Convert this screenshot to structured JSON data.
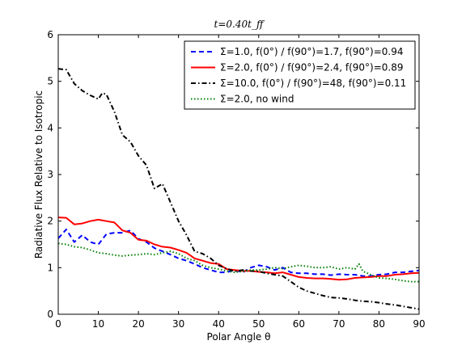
{
  "chart_data": {
    "type": "line",
    "title": "t=0.40t_ff",
    "xlabel": "Polar Angle θ",
    "ylabel": "Radiative Flux Relative to Isotropic",
    "xlim": [
      0,
      90
    ],
    "ylim": [
      0,
      6
    ],
    "xticks": [
      "0",
      "10",
      "20",
      "30",
      "40",
      "50",
      "60",
      "70",
      "80",
      "90"
    ],
    "yticks": [
      "0",
      "1",
      "2",
      "3",
      "4",
      "5",
      "6"
    ],
    "grid": false,
    "legend_position": "top-right",
    "series": [
      {
        "name": "Σ=1.0, f(0°) / f(90°)=1.7, f(90°)=0.94",
        "color": "#0000ff",
        "style": "dashed",
        "x": [
          0,
          2,
          4,
          6,
          8,
          10,
          12,
          14,
          16,
          18,
          20,
          22,
          24,
          26,
          28,
          30,
          32,
          34,
          36,
          38,
          40,
          42,
          44,
          46,
          48,
          50,
          52,
          54,
          56,
          58,
          60,
          62,
          64,
          66,
          68,
          70,
          72,
          74,
          76,
          78,
          80,
          82,
          84,
          86,
          88,
          90
        ],
        "values": [
          1.63,
          1.82,
          1.55,
          1.7,
          1.55,
          1.5,
          1.72,
          1.75,
          1.75,
          1.8,
          1.62,
          1.55,
          1.42,
          1.35,
          1.28,
          1.2,
          1.15,
          1.08,
          1.0,
          0.95,
          0.9,
          0.9,
          0.95,
          0.9,
          1.0,
          1.05,
          1.02,
          0.95,
          1.0,
          0.9,
          0.88,
          0.88,
          0.86,
          0.86,
          0.84,
          0.86,
          0.85,
          0.85,
          0.82,
          0.82,
          0.85,
          0.86,
          0.9,
          0.9,
          0.92,
          0.94
        ]
      },
      {
        "name": "Σ=2.0, f(0°) / f(90°)=2.4, f(90°)=0.89",
        "color": "#ff0000",
        "style": "solid",
        "x": [
          0,
          2,
          4,
          6,
          8,
          10,
          12,
          14,
          16,
          18,
          20,
          22,
          24,
          26,
          28,
          30,
          32,
          34,
          36,
          38,
          40,
          42,
          44,
          46,
          48,
          50,
          52,
          54,
          56,
          58,
          60,
          62,
          64,
          66,
          68,
          70,
          72,
          74,
          76,
          78,
          80,
          82,
          84,
          86,
          88,
          90
        ],
        "values": [
          2.08,
          2.07,
          1.93,
          1.95,
          2.0,
          2.03,
          2.0,
          1.97,
          1.8,
          1.75,
          1.6,
          1.58,
          1.5,
          1.45,
          1.43,
          1.38,
          1.32,
          1.2,
          1.15,
          1.1,
          1.08,
          0.97,
          0.95,
          0.93,
          0.93,
          0.91,
          0.9,
          0.88,
          0.9,
          0.85,
          0.8,
          0.78,
          0.77,
          0.77,
          0.76,
          0.74,
          0.75,
          0.78,
          0.79,
          0.8,
          0.82,
          0.82,
          0.85,
          0.86,
          0.88,
          0.89
        ]
      },
      {
        "name": "Σ=10.0, f(0°) / f(90°)=48, f(90°)=0.11",
        "color": "#000000",
        "style": "dashdot",
        "x": [
          0,
          2,
          4,
          6,
          8,
          10,
          11,
          12,
          14,
          16,
          18,
          20,
          22,
          24,
          26,
          28,
          30,
          32,
          34,
          36,
          38,
          40,
          42,
          44,
          46,
          48,
          50,
          52,
          54,
          56,
          58,
          60,
          62,
          64,
          66,
          68,
          70,
          72,
          74,
          76,
          78,
          80,
          82,
          84,
          86,
          88,
          90
        ],
        "values": [
          5.27,
          5.25,
          4.95,
          4.8,
          4.7,
          4.62,
          4.75,
          4.72,
          4.35,
          3.85,
          3.7,
          3.4,
          3.2,
          2.7,
          2.8,
          2.4,
          2.0,
          1.7,
          1.35,
          1.3,
          1.2,
          1.05,
          0.98,
          0.92,
          0.95,
          0.93,
          0.92,
          0.88,
          0.85,
          0.82,
          0.7,
          0.58,
          0.5,
          0.45,
          0.4,
          0.36,
          0.35,
          0.33,
          0.3,
          0.28,
          0.27,
          0.25,
          0.22,
          0.2,
          0.17,
          0.14,
          0.11
        ]
      },
      {
        "name": "Σ=2.0, no wind",
        "color": "#008000",
        "style": "dotted",
        "x": [
          0,
          2,
          4,
          6,
          8,
          10,
          12,
          14,
          16,
          18,
          20,
          22,
          24,
          26,
          28,
          30,
          32,
          34,
          36,
          38,
          40,
          42,
          44,
          46,
          48,
          50,
          52,
          54,
          56,
          58,
          60,
          62,
          64,
          66,
          68,
          70,
          72,
          74,
          75,
          76,
          78,
          80,
          82,
          84,
          86,
          88,
          90
        ],
        "values": [
          1.52,
          1.5,
          1.45,
          1.43,
          1.38,
          1.32,
          1.3,
          1.27,
          1.25,
          1.27,
          1.28,
          1.3,
          1.28,
          1.32,
          1.35,
          1.3,
          1.2,
          1.15,
          1.05,
          1.0,
          0.97,
          0.93,
          0.9,
          0.92,
          0.95,
          0.95,
          0.97,
          1.0,
          0.98,
          1.02,
          1.05,
          1.03,
          1.0,
          1.0,
          1.02,
          0.97,
          1.0,
          0.97,
          1.08,
          0.92,
          0.85,
          0.78,
          0.77,
          0.75,
          0.72,
          0.7,
          0.7
        ]
      }
    ]
  }
}
